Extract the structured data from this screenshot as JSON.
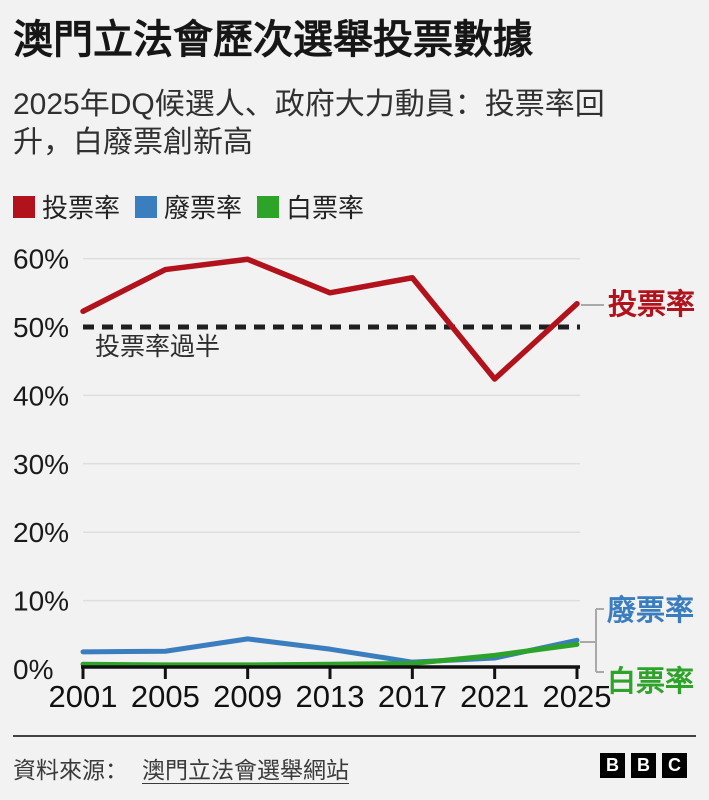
{
  "page": {
    "background": "#f2f2f2"
  },
  "header": {
    "title": "澳門立法會歷次選舉投票數據",
    "subtitle_line1": "2025年DQ候選人、政府大力動員：投票率回",
    "subtitle_line2": "升，白廢票創新高"
  },
  "legend": {
    "items": [
      {
        "label": "投票率",
        "color": "#b2121b"
      },
      {
        "label": "廢票率",
        "color": "#3b7ebf"
      },
      {
        "label": "白票率",
        "color": "#2ea32a"
      }
    ]
  },
  "chart_data": {
    "type": "line",
    "title": "澳門立法會歷次選舉投票數據",
    "x": [
      2001,
      2005,
      2009,
      2013,
      2017,
      2021,
      2025
    ],
    "series": [
      {
        "name": "投票率",
        "color": "#b2121b",
        "values": [
          52.3,
          58.4,
          59.9,
          55.0,
          57.2,
          42.4,
          53.4
        ]
      },
      {
        "name": "廢票率",
        "color": "#3b7ebf",
        "values": [
          2.5,
          2.6,
          4.4,
          2.9,
          1.0,
          1.6,
          4.2
        ]
      },
      {
        "name": "白票率",
        "color": "#2ea32a",
        "values": [
          0.7,
          0.6,
          0.6,
          0.7,
          0.8,
          2.0,
          3.6
        ]
      }
    ],
    "ylim": [
      0,
      62
    ],
    "y_ticks": [
      60,
      50,
      40,
      30,
      20,
      10,
      0
    ],
    "y_tick_labels": [
      "60%",
      "50%",
      "40%",
      "30%",
      "20%",
      "10%",
      "0%"
    ],
    "gridline_values": [
      60,
      40,
      30,
      20,
      10
    ],
    "grid": "horizontal",
    "legend_position": "top",
    "reference_line": {
      "value": 50,
      "label": "投票率過半",
      "style": "dashed",
      "color": "#1f1f1f"
    },
    "end_label_colors": {
      "投票率": "#b2121b",
      "廢票率": "#3b7ebf",
      "白票率": "#2ea32a"
    }
  },
  "footer": {
    "source_prefix": "資料來源：",
    "source_link": "澳門立法會選舉網站",
    "logo_letters": [
      "B",
      "B",
      "C"
    ]
  }
}
